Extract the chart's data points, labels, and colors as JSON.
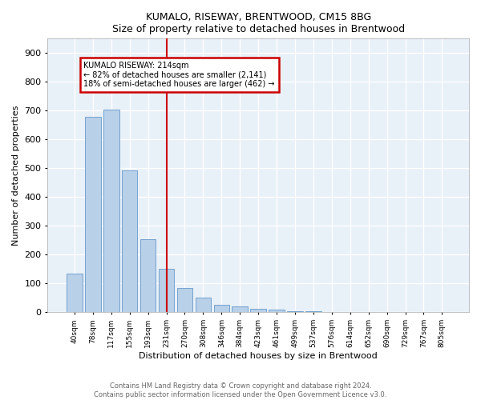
{
  "title1": "KUMALO, RISEWAY, BRENTWOOD, CM15 8BG",
  "title2": "Size of property relative to detached houses in Brentwood",
  "xlabel": "Distribution of detached houses by size in Brentwood",
  "ylabel": "Number of detached properties",
  "bar_labels": [
    "40sqm",
    "78sqm",
    "117sqm",
    "155sqm",
    "193sqm",
    "231sqm",
    "270sqm",
    "308sqm",
    "346sqm",
    "384sqm",
    "423sqm",
    "461sqm",
    "499sqm",
    "537sqm",
    "576sqm",
    "614sqm",
    "652sqm",
    "690sqm",
    "729sqm",
    "767sqm",
    "805sqm"
  ],
  "bar_heights": [
    135,
    678,
    703,
    493,
    253,
    152,
    85,
    50,
    26,
    21,
    13,
    10,
    5,
    4,
    2,
    2,
    1,
    1,
    1,
    1,
    1
  ],
  "bar_color": "#b8d0e8",
  "bar_edge_color": "#6699cc",
  "bg_color": "#e8f0f8",
  "grid_color": "#ffffff",
  "vline_x": 5,
  "vline_color": "#cc0000",
  "annotation_title": "KUMALO RISEWAY: 214sqm",
  "annotation_line1": "← 82% of detached houses are smaller (2,141)",
  "annotation_line2": "18% of semi-detached houses are larger (462) →",
  "annotation_box_color": "#cc0000",
  "footer_line1": "Contains HM Land Registry data © Crown copyright and database right 2024.",
  "footer_line2": "Contains public sector information licensed under the Open Government Licence v3.0.",
  "ylim": [
    0,
    950
  ],
  "yticks": [
    0,
    100,
    200,
    300,
    400,
    500,
    600,
    700,
    800,
    900
  ]
}
